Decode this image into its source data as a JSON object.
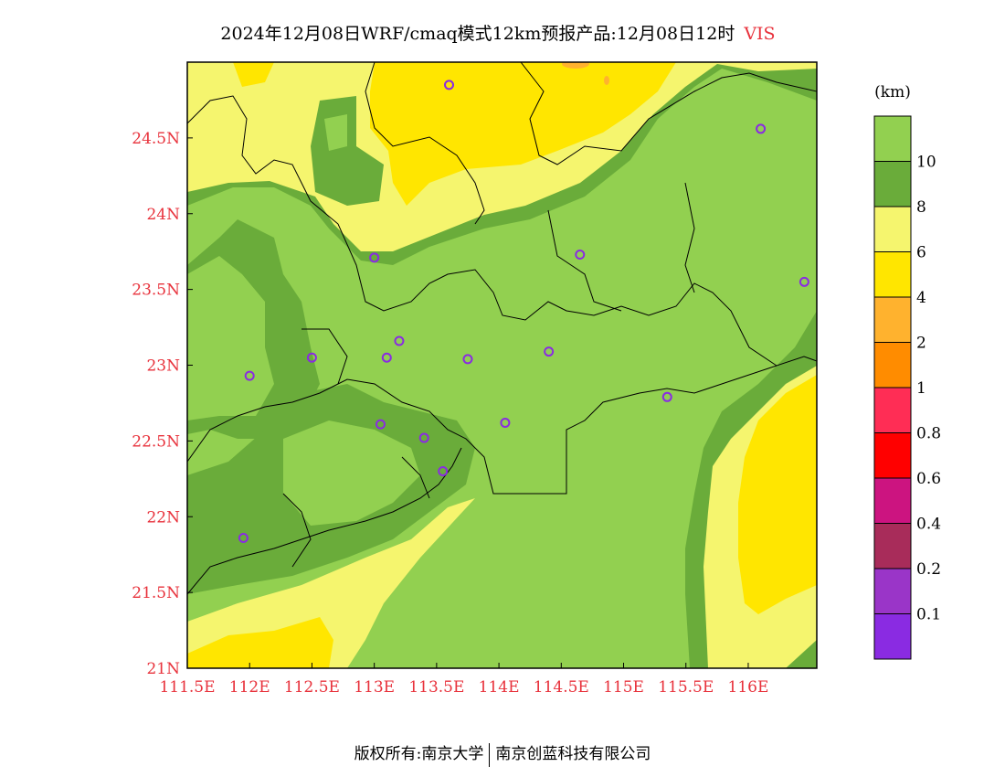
{
  "title": {
    "text": "2024年12月08日WRF/cmaq模式12km预报产品:12月08日12时",
    "variable": "VIS"
  },
  "footer": {
    "left": "版权所有:南京大学",
    "right": "南京创蓝科技有限公司"
  },
  "axes": {
    "lon_labels": [
      "111.5E",
      "112E",
      "112.5E",
      "113E",
      "113.5E",
      "114E",
      "114.5E",
      "115E",
      "115.5E",
      "116E"
    ],
    "lat_labels": [
      "24.5N",
      "24N",
      "23.5N",
      "23N",
      "22.5N",
      "22N",
      "21.5N",
      "21N"
    ],
    "lon_range": [
      111.5,
      116.55
    ],
    "lat_range": [
      21.0,
      25.0
    ]
  },
  "colorbar": {
    "unit": "(km)",
    "levels": [
      "10",
      "8",
      "6",
      "4",
      "2",
      "1",
      "0.8",
      "0.6",
      "0.4",
      "0.2",
      "0.1"
    ],
    "colors": [
      "#92d050",
      "#6aac3a",
      "#f5f56e",
      "#ffe600",
      "#ffb22e",
      "#ff8c00",
      "#ff2d55",
      "#ff0000",
      "#cc1480",
      "#a82c5a",
      "#9a35c8",
      "#8a2be2"
    ]
  },
  "stations": [
    {
      "lon": 113.6,
      "lat": 24.85
    },
    {
      "lon": 116.1,
      "lat": 24.56
    },
    {
      "lon": 113.0,
      "lat": 23.71
    },
    {
      "lon": 114.65,
      "lat": 23.73
    },
    {
      "lon": 116.45,
      "lat": 23.55
    },
    {
      "lon": 113.2,
      "lat": 23.16
    },
    {
      "lon": 112.5,
      "lat": 23.05
    },
    {
      "lon": 113.1,
      "lat": 23.05
    },
    {
      "lon": 113.75,
      "lat": 23.04
    },
    {
      "lon": 114.4,
      "lat": 23.09
    },
    {
      "lon": 112.0,
      "lat": 22.93
    },
    {
      "lon": 115.35,
      "lat": 22.79
    },
    {
      "lon": 113.05,
      "lat": 22.61
    },
    {
      "lon": 113.4,
      "lat": 22.52
    },
    {
      "lon": 114.05,
      "lat": 22.62
    },
    {
      "lon": 113.55,
      "lat": 22.3
    },
    {
      "lon": 111.95,
      "lat": 21.86
    }
  ]
}
